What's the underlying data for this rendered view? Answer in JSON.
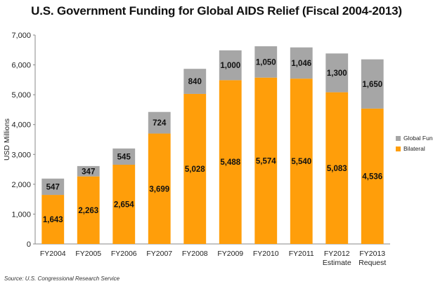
{
  "chart_data": {
    "type": "bar",
    "stacked": true,
    "title": "U.S. Government Funding for Global AIDS Relief (Fiscal 2004-2013)",
    "ylabel": "USD Millions",
    "xlabel": "",
    "ylim": [
      0,
      7000
    ],
    "yticks": [
      0,
      1000,
      2000,
      3000,
      4000,
      5000,
      6000,
      7000
    ],
    "ytick_labels": [
      "0",
      "1,000",
      "2,000",
      "3,000",
      "4,000",
      "5,000",
      "6,000",
      "7,000"
    ],
    "grid": false,
    "legend_position": "right",
    "categories": [
      [
        "FY2004"
      ],
      [
        "FY2005"
      ],
      [
        "FY2006"
      ],
      [
        "FY2007"
      ],
      [
        "FY2008"
      ],
      [
        "FY2009"
      ],
      [
        "FY2010"
      ],
      [
        "FY2011"
      ],
      [
        "FY2012",
        "Estimate"
      ],
      [
        "FY2013",
        "Request"
      ]
    ],
    "series": [
      {
        "name": "Bilateral",
        "color": "#FF9E0A",
        "values": [
          1643,
          2263,
          2654,
          3699,
          5028,
          5488,
          5574,
          5540,
          5083,
          4536
        ],
        "labels": [
          "1,643",
          "2,263",
          "2,654",
          "3,699",
          "5,028",
          "5,488",
          "5,574",
          "5,540",
          "5,083",
          "4,536"
        ]
      },
      {
        "name": "Global Fund",
        "color": "#A6A6A6",
        "values": [
          547,
          347,
          545,
          724,
          840,
          1000,
          1050,
          1046,
          1300,
          1650
        ],
        "labels": [
          "547",
          "347",
          "545",
          "724",
          "840",
          "1,000",
          "1,050",
          "1,046",
          "1,300",
          "1,650"
        ]
      }
    ],
    "source": "Source: U.S. Congressional Research Service"
  }
}
